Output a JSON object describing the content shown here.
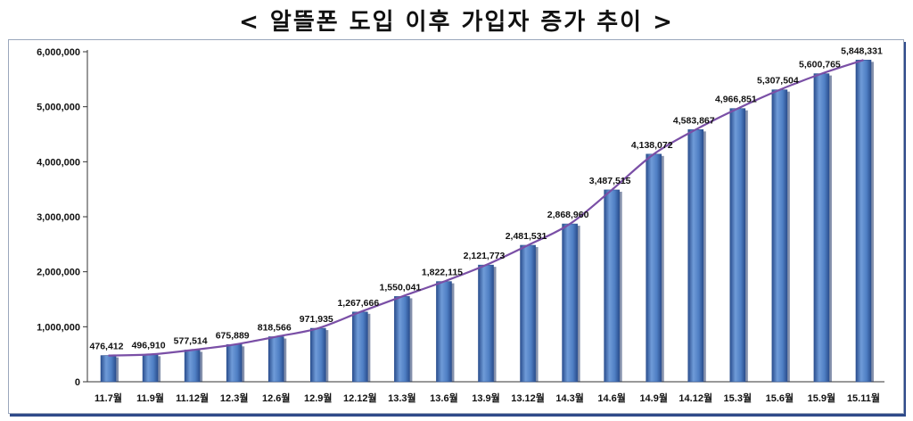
{
  "chart_data": {
    "type": "bar",
    "title": "< 알뜰폰 도입 이후 가입자 증가 추이 >",
    "xlabel": "",
    "ylabel": "",
    "ylim": [
      0,
      6000000
    ],
    "yticks": [
      "0",
      "1,000,000",
      "2,000,000",
      "3,000,000",
      "4,000,000",
      "5,000,000",
      "6,000,000"
    ],
    "categories": [
      "11.7월",
      "11.9월",
      "11.12월",
      "12.3월",
      "12.6월",
      "12.9월",
      "12.12월",
      "13.3월",
      "13.6월",
      "13.9월",
      "13.12월",
      "14.3월",
      "14.6월",
      "14.9월",
      "14.12월",
      "15.3월",
      "15.6월",
      "15.9월",
      "15.11월"
    ],
    "values": [
      476412,
      496910,
      577514,
      675889,
      818566,
      971935,
      1267666,
      1550041,
      1822115,
      2121773,
      2481531,
      2868960,
      3487515,
      4138072,
      4583867,
      4966851,
      5307504,
      5600765,
      5848331
    ],
    "data_labels": [
      "476,412",
      "496,910",
      "577,514",
      "675,889",
      "818,566",
      "971,935",
      "1,267,666",
      "1,550,041",
      "1,822,115",
      "2,121,773",
      "2,481,531",
      "2,868,960",
      "3,487,515",
      "4,138,072",
      "4,583,867",
      "4,966,851",
      "5,307,504",
      "5,600,765",
      "5,848,331"
    ],
    "overlay_line": true,
    "grid": false,
    "colors": {
      "bar": "#4f7fc4",
      "bar_dark": "#2b4f8f",
      "line": "#7a4fa6"
    }
  }
}
